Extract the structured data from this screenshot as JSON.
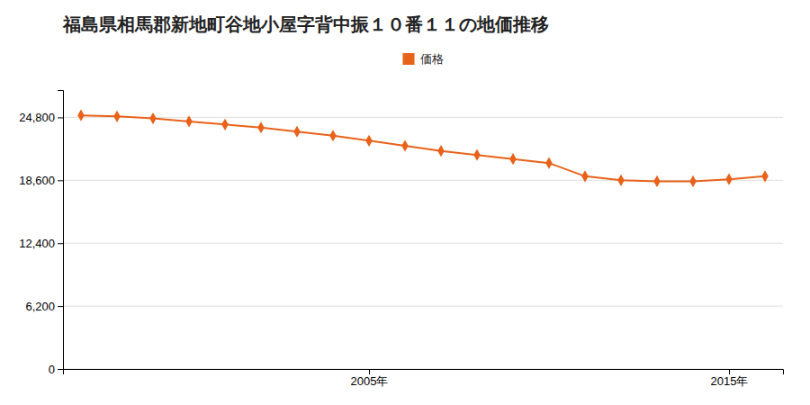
{
  "chart_data": {
    "type": "line",
    "title": "福島県相馬郡新地町谷地小屋字背中振１０番１１の地価推移",
    "x": [
      1997,
      1998,
      1999,
      2000,
      2001,
      2002,
      2003,
      2004,
      2005,
      2006,
      2007,
      2008,
      2009,
      2010,
      2011,
      2012,
      2013,
      2014,
      2015,
      2016
    ],
    "series": [
      {
        "name": "価格",
        "color": "#E8621A",
        "marker": "diamond",
        "values": [
          25000,
          24900,
          24700,
          24400,
          24100,
          23800,
          23400,
          23000,
          22500,
          22000,
          21500,
          21100,
          20700,
          20300,
          19000,
          18600,
          18500,
          18500,
          18700,
          19000
        ]
      }
    ],
    "xlim": [
      1996.5,
      2016.5
    ],
    "xticks": [
      {
        "value": 2005,
        "label": "2005年"
      },
      {
        "value": 2015,
        "label": "2015年"
      }
    ],
    "ylim": [
      0,
      27500
    ],
    "yticks": [
      0,
      {
        "value": 6200,
        "label": "6,200"
      },
      {
        "value": 12400,
        "label": "12,400"
      },
      {
        "value": 18600,
        "label": "18,600"
      },
      {
        "value": 24800,
        "label": "24,800"
      }
    ],
    "grid": true,
    "legend": "top"
  }
}
